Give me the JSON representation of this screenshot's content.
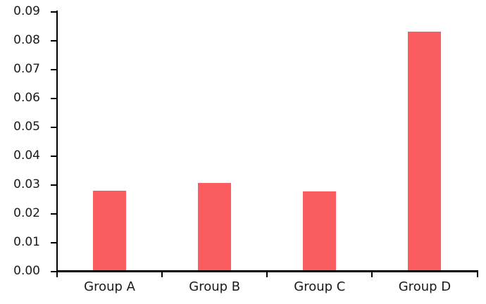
{
  "chart_data": {
    "type": "bar",
    "title": "",
    "xlabel": "",
    "ylabel": "",
    "categories": [
      "Group A",
      "Group B",
      "Group C",
      "Group D"
    ],
    "values": [
      0.028,
      0.0306,
      0.0277,
      0.0831
    ],
    "ylim": [
      0,
      0.09
    ],
    "ytick_interval": 0.01,
    "ytick_labels": [
      "0.00",
      "0.01",
      "0.02",
      "0.03",
      "0.04",
      "0.05",
      "0.06",
      "0.07",
      "0.08",
      "0.09"
    ],
    "grid": false,
    "legend": false,
    "colors": {
      "bar_fill": "#FB5C5F",
      "axis": "#000000",
      "text": "#1A1A1A",
      "background": "#FFFFFF"
    }
  }
}
